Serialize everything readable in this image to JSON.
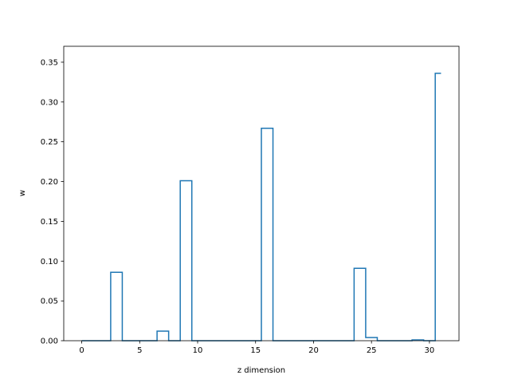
{
  "chart_data": {
    "type": "step",
    "xlabel": "z dimension",
    "ylabel": "w",
    "xlim": [
      -1.55,
      32.55
    ],
    "ylim": [
      0,
      0.37
    ],
    "x_ticks": [
      0,
      5,
      10,
      15,
      20,
      25,
      30
    ],
    "y_ticks": [
      0.0,
      0.05,
      0.1,
      0.15,
      0.2,
      0.25,
      0.3,
      0.35
    ],
    "x": [
      0,
      1,
      2,
      3,
      4,
      5,
      6,
      7,
      8,
      9,
      10,
      11,
      12,
      13,
      14,
      15,
      16,
      17,
      18,
      19,
      20,
      21,
      22,
      23,
      24,
      25,
      26,
      27,
      28,
      29,
      30,
      31
    ],
    "values": [
      0,
      0,
      0,
      0.086,
      0,
      0,
      0,
      0.012,
      0,
      0.201,
      0,
      0,
      0,
      0,
      0,
      0,
      0.267,
      0,
      0,
      0,
      0,
      0,
      0,
      0,
      0.091,
      0.004,
      0,
      0,
      0,
      0.001,
      0,
      0.336
    ],
    "line_color": "#1f77b4",
    "grid": false
  }
}
